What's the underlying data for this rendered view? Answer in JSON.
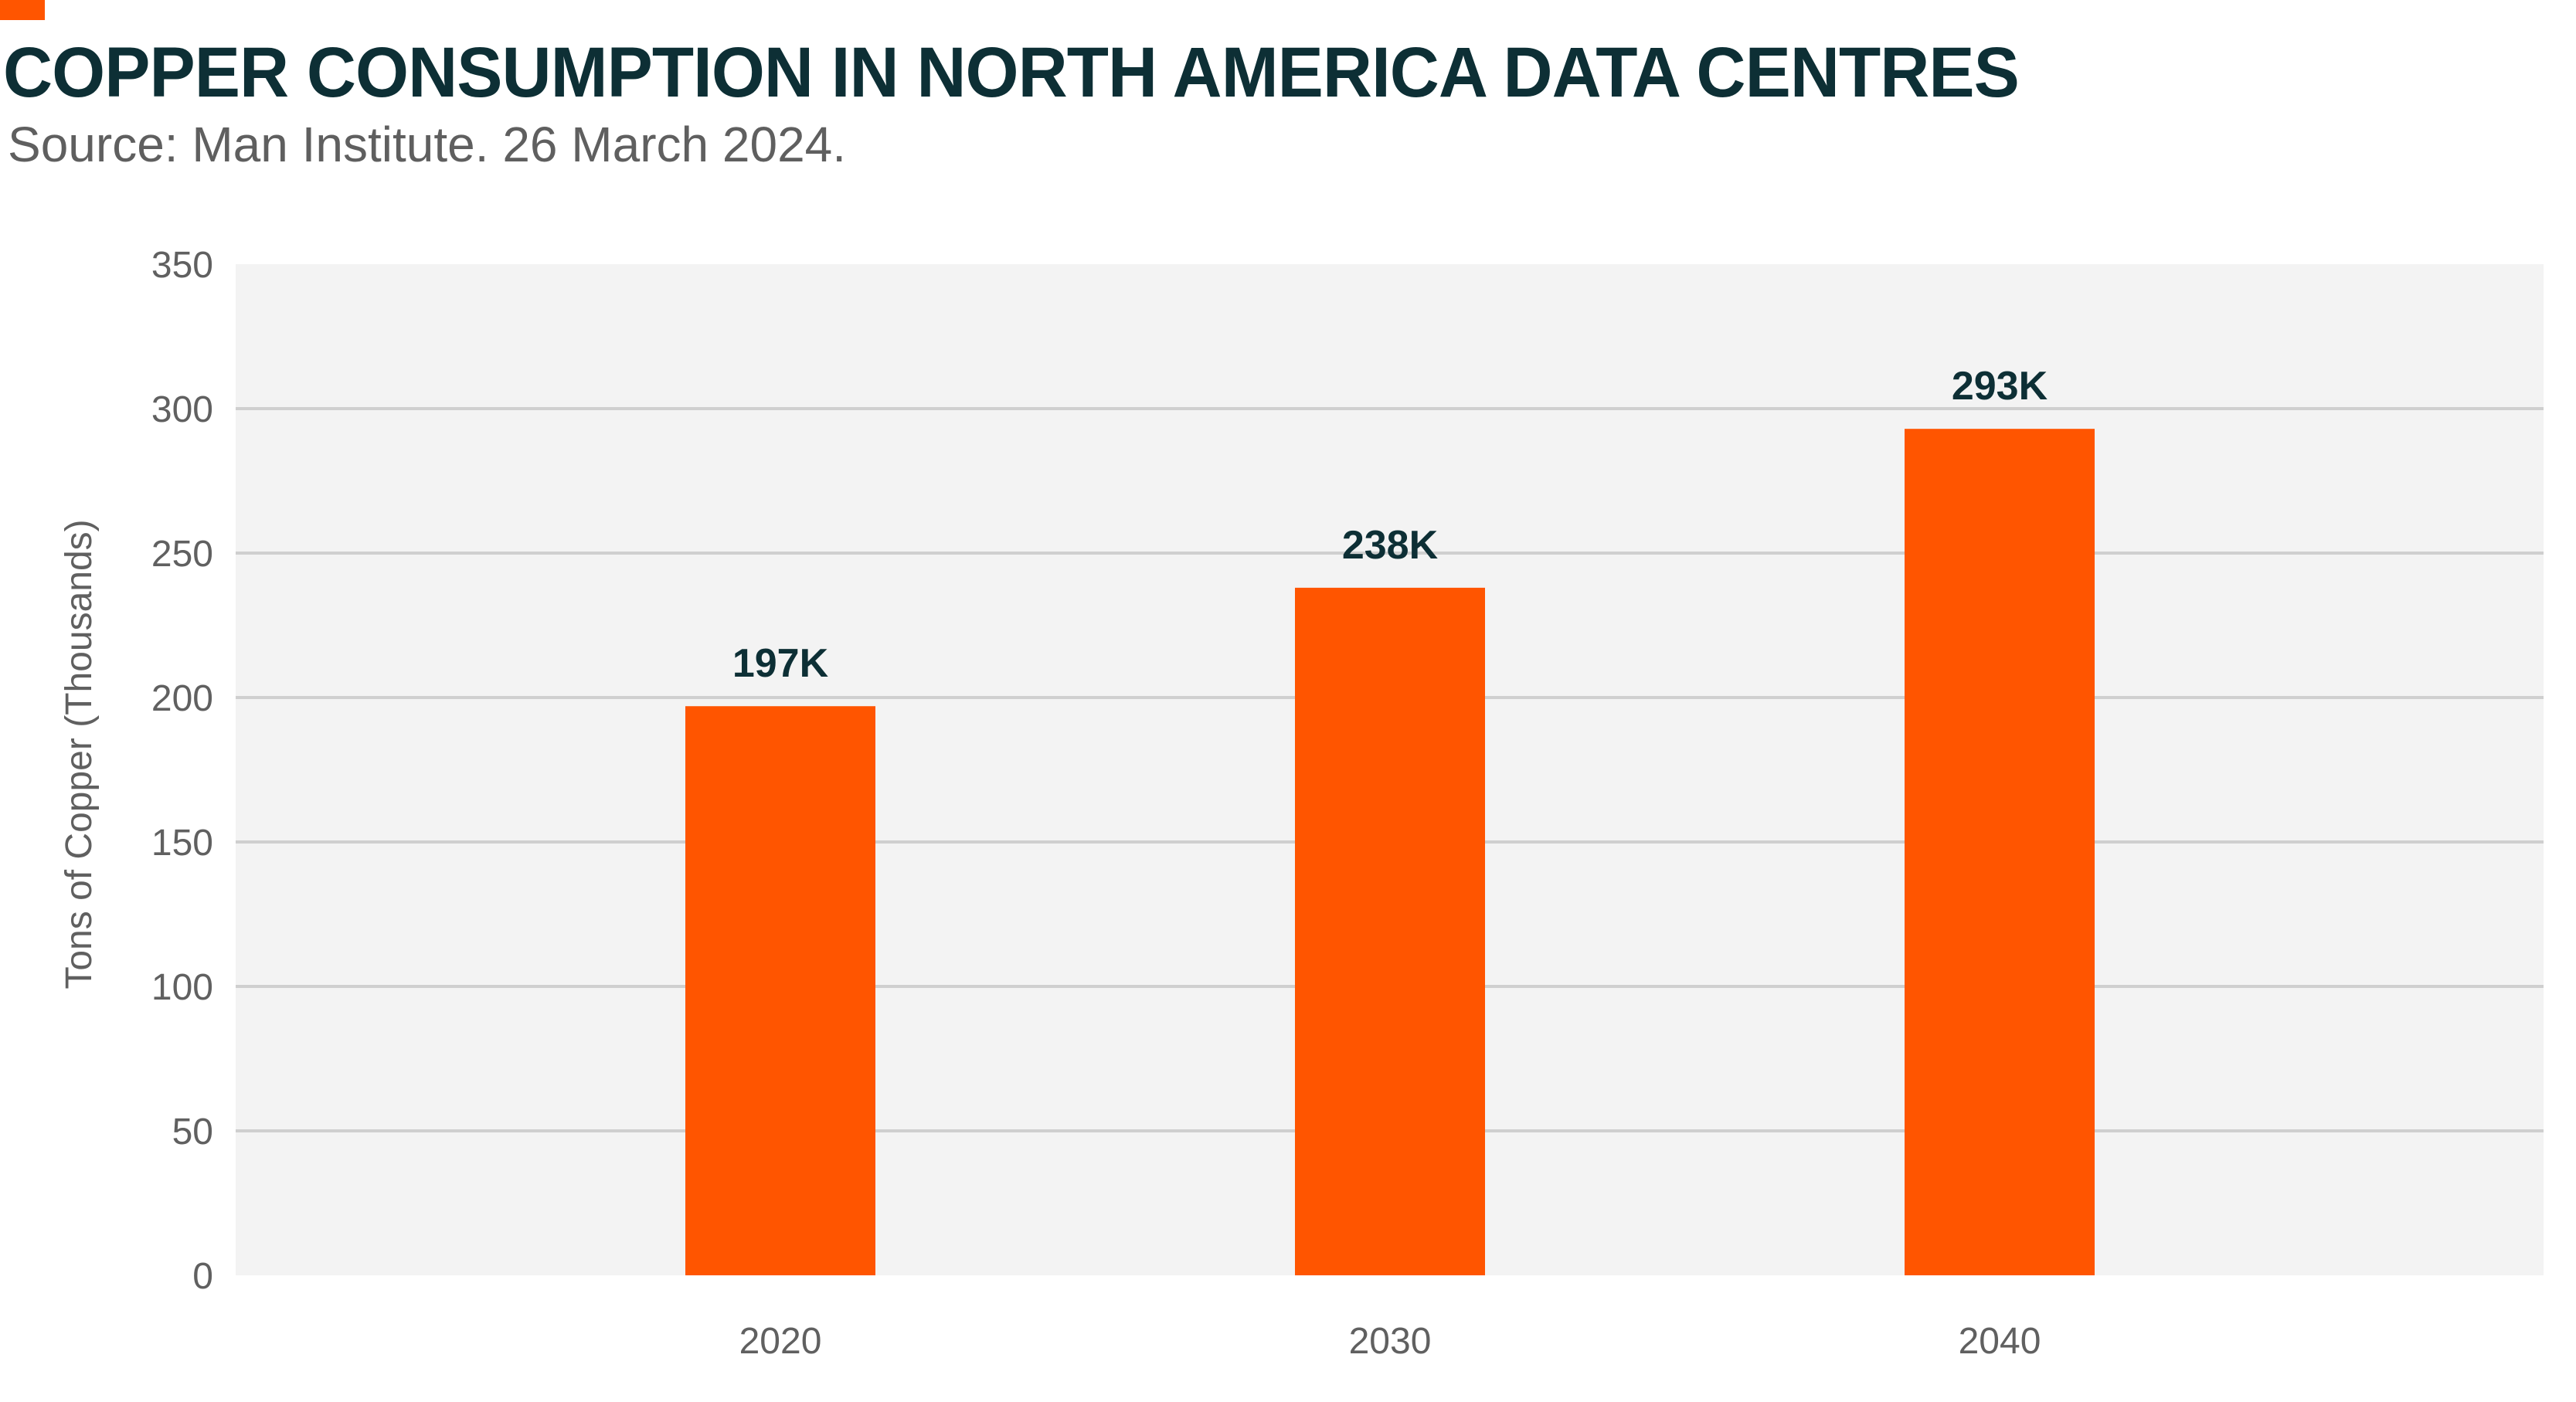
{
  "header": {
    "title": "COPPER CONSUMPTION IN NORTH AMERICA DATA CENTRES",
    "subtitle": "Source: Man Institute. 26 March 2024."
  },
  "colors": {
    "accent": "#ff5500",
    "bar": "#ff5500",
    "plot_background": "#f3f3f3",
    "gridline": "#cfcfcf",
    "title": "#0d2f35",
    "tick_text": "#606060"
  },
  "chart_data": {
    "type": "bar",
    "title": "COPPER CONSUMPTION IN NORTH AMERICA DATA CENTRES",
    "subtitle": "Source: Man Institute. 26 March 2024.",
    "categories": [
      "2020",
      "2030",
      "2040"
    ],
    "values": [
      197,
      238,
      293
    ],
    "data_labels": [
      "197K",
      "238K",
      "293K"
    ],
    "xlabel": "",
    "ylabel": "Tons of Copper (Thousands)",
    "ylim": [
      0,
      350
    ],
    "yticks": [
      0,
      50,
      100,
      150,
      200,
      250,
      300,
      350
    ],
    "ytick_labels": [
      "0",
      "50",
      "100",
      "150",
      "200",
      "250",
      "300",
      "350"
    ],
    "grid": true,
    "legend": "none"
  }
}
